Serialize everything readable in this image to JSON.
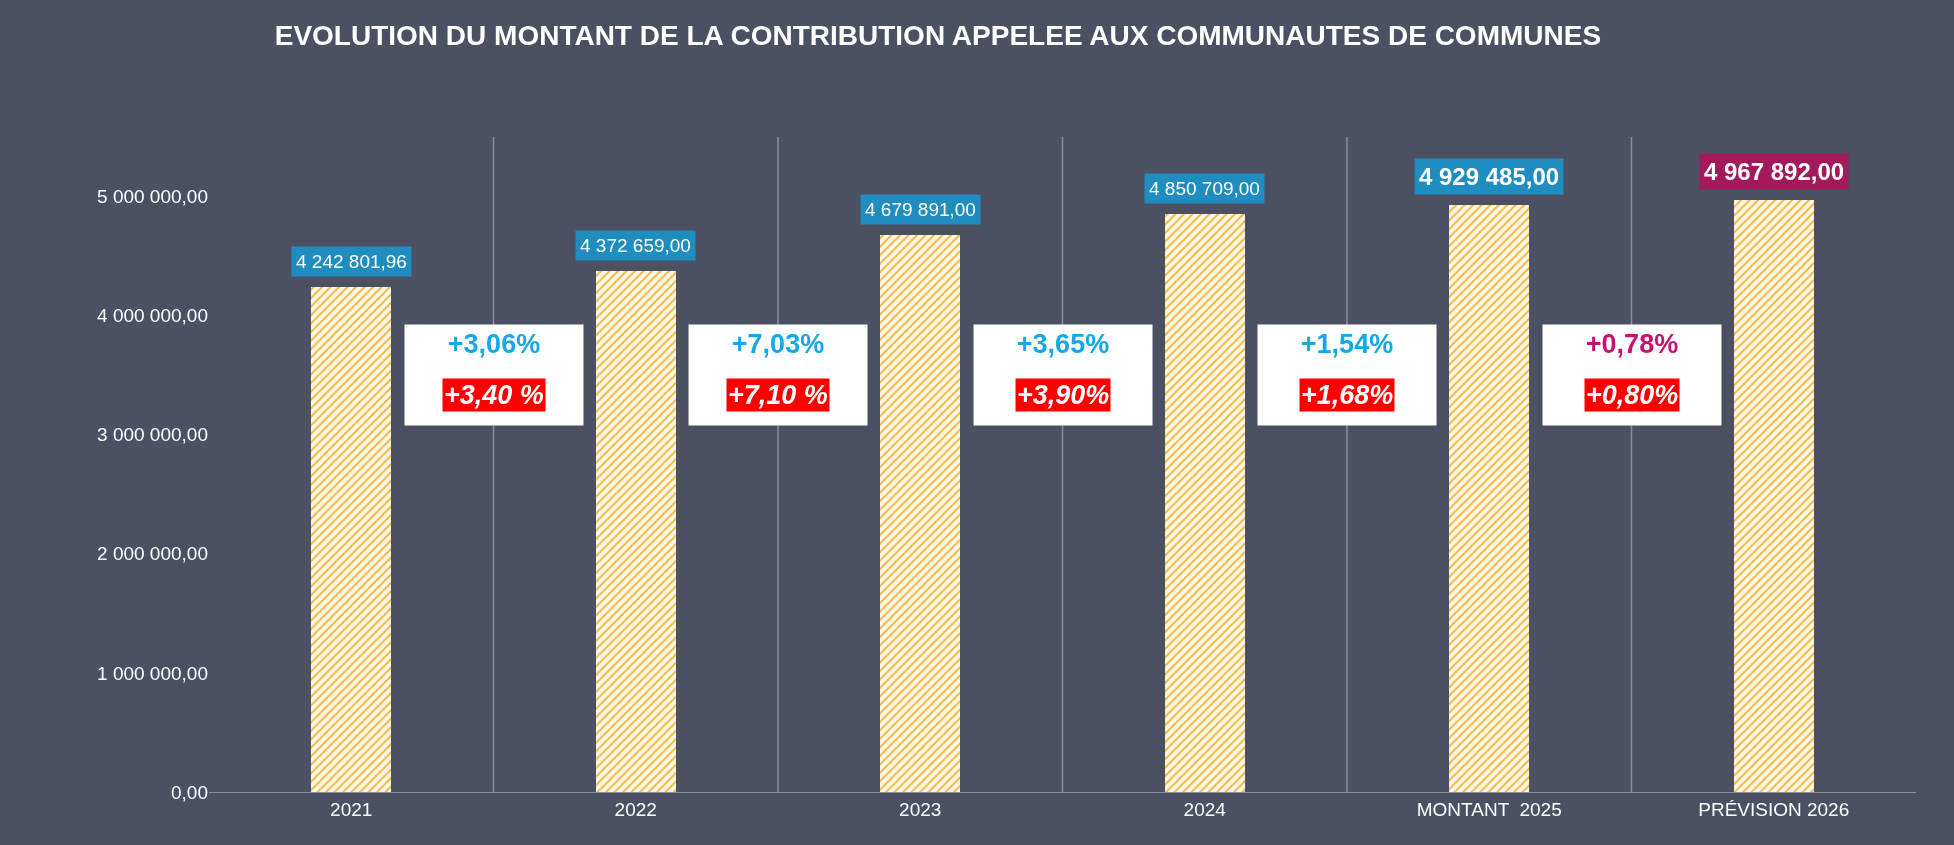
{
  "chart_data": {
    "type": "bar",
    "title": "EVOLUTION DU MONTANT DE LA CONTRIBUTION APPELEE AUX COMMUNAUTES DE COMMUNES",
    "categories": [
      "2021",
      "2022",
      "2023",
      "2024",
      "MONTANT  2025",
      "PRÉVISION 2026"
    ],
    "values": [
      4242801.96,
      4372659.0,
      4679891.0,
      4850709.0,
      4929485.0,
      4967892.0
    ],
    "value_labels": [
      "4 242 801,96",
      "4 372 659,00",
      "4 679 891,00",
      "4 850 709,00",
      "4 929 485,00",
      "4 967 892,00"
    ],
    "color": "#f0b84a",
    "ylim": [
      0,
      5500000
    ],
    "yticks": [
      {
        "value": 0,
        "label": "0,00"
      },
      {
        "value": 1000000,
        "label": "1 000 000,00"
      },
      {
        "value": 2000000,
        "label": "2 000 000,00"
      },
      {
        "value": 3000000,
        "label": "3 000 000,00"
      },
      {
        "value": 4000000,
        "label": "4 000 000,00"
      },
      {
        "value": 5000000,
        "label": "5 000 000,00"
      }
    ],
    "grid": "x",
    "annotations": [
      "+3,06%",
      "+3,40 %",
      "+7,03%",
      "+7,10 %",
      "+3,65%",
      "+3,90%",
      "+1,54%",
      "+1,68%",
      "+0,78%",
      "+0,80%"
    ]
  }
}
